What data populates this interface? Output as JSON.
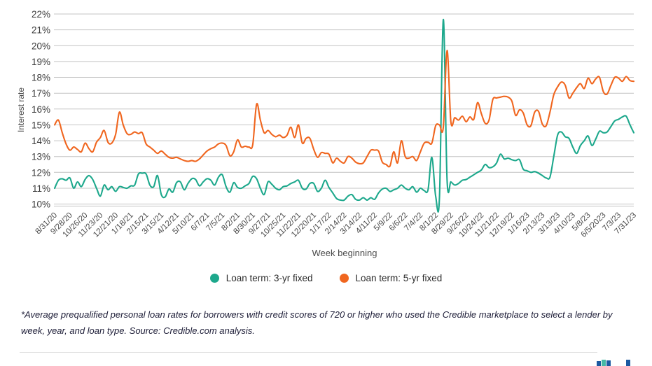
{
  "chart_data": {
    "type": "line",
    "title": "",
    "xlabel": "Week beginning",
    "ylabel": "Interest rate",
    "ylim": [
      9.85,
      22.3
    ],
    "grid": true,
    "legend_position": "bottom",
    "ytick_labels": [
      "10%",
      "11%",
      "12%",
      "13%",
      "14%",
      "15%",
      "16%",
      "17%",
      "18%",
      "19%",
      "20%",
      "21%",
      "22%"
    ],
    "yticks": [
      10,
      11,
      12,
      13,
      14,
      15,
      16,
      17,
      18,
      19,
      20,
      21,
      22
    ],
    "x_tick_every": 4,
    "x_tick_labels": [
      "8/31/20",
      "9/28/20",
      "10/26/20",
      "11/23/20",
      "12/21/20",
      "1/18/21",
      "2/15/21",
      "3/15/21",
      "4/12/21",
      "5/10/21",
      "6/7/21",
      "7/5/21",
      "8/2/21",
      "8/30/21",
      "9/27/21",
      "10/25/21",
      "11/22/21",
      "12/20/21",
      "1/17/22",
      "2/14/22",
      "3/14/22",
      "4/11/22",
      "5/9/22",
      "6/6/22",
      "7/4/22",
      "8/1/22",
      "8/29/22",
      "9/26/22",
      "10/24/22",
      "11/21/22",
      "12/19/22",
      "1/16/23",
      "2/13/23",
      "3/13/23",
      "4/10/23",
      "5/8/23",
      "6/5/2023",
      "7/3/23",
      "7/31/23"
    ],
    "series": [
      {
        "name": "Loan term: 3-yr fixed",
        "color": "#1da88c",
        "values": [
          11.0,
          11.5,
          11.6,
          11.5,
          11.65,
          11.0,
          11.4,
          11.1,
          11.55,
          11.8,
          11.55,
          11.0,
          10.5,
          11.2,
          10.9,
          11.1,
          10.8,
          11.1,
          11.05,
          11.0,
          11.15,
          11.2,
          11.9,
          11.95,
          11.9,
          11.2,
          11.1,
          11.8,
          10.6,
          10.45,
          10.95,
          10.75,
          11.35,
          11.4,
          10.9,
          11.3,
          11.6,
          11.55,
          11.15,
          11.4,
          11.6,
          11.5,
          11.2,
          11.7,
          11.85,
          11.1,
          10.75,
          11.35,
          11.05,
          11.0,
          11.15,
          11.3,
          11.75,
          11.6,
          11.0,
          10.6,
          11.4,
          11.25,
          11.0,
          10.9,
          11.1,
          11.15,
          11.3,
          11.4,
          11.5,
          11.0,
          10.95,
          11.3,
          11.3,
          10.8,
          11.0,
          11.5,
          11.05,
          10.7,
          10.35,
          10.25,
          10.25,
          10.5,
          10.6,
          10.3,
          10.25,
          10.4,
          10.25,
          10.4,
          10.3,
          10.7,
          10.95,
          11.0,
          10.8,
          10.9,
          11.0,
          11.2,
          11.0,
          10.9,
          11.1,
          10.75,
          11.0,
          10.85,
          10.9,
          12.95,
          10.5,
          10.4,
          21.65,
          11.5,
          11.4,
          11.2,
          11.3,
          11.5,
          11.55,
          11.7,
          11.85,
          12.0,
          12.15,
          12.5,
          12.3,
          12.35,
          12.6,
          13.15,
          12.85,
          12.9,
          12.8,
          12.75,
          12.8,
          12.2,
          12.1,
          12.0,
          12.05,
          11.95,
          11.8,
          11.65,
          11.7,
          13.0,
          14.35,
          14.55,
          14.25,
          14.15,
          13.6,
          13.2,
          13.7,
          14.0,
          14.3,
          13.7,
          14.1,
          14.6,
          14.5,
          14.55,
          14.9,
          15.25,
          15.35,
          15.5,
          15.55,
          15.0,
          14.5
        ]
      },
      {
        "name": "Loan term: 5-yr fixed",
        "color": "#f0661f",
        "values": [
          15.0,
          15.3,
          14.5,
          13.8,
          13.4,
          13.6,
          13.45,
          13.3,
          13.85,
          13.5,
          13.3,
          13.9,
          14.2,
          14.65,
          13.9,
          13.85,
          14.4,
          15.8,
          15.0,
          14.45,
          14.4,
          14.55,
          14.45,
          14.5,
          13.8,
          13.6,
          13.4,
          13.2,
          13.35,
          13.15,
          12.95,
          12.9,
          12.95,
          12.85,
          12.75,
          12.7,
          12.75,
          12.7,
          12.85,
          13.1,
          13.35,
          13.5,
          13.6,
          13.8,
          13.85,
          13.7,
          13.05,
          13.3,
          14.05,
          13.6,
          13.65,
          13.6,
          13.75,
          16.3,
          15.3,
          14.5,
          14.65,
          14.4,
          14.25,
          14.35,
          14.2,
          14.35,
          14.85,
          14.2,
          15.0,
          13.85,
          14.15,
          14.15,
          13.45,
          12.95,
          13.25,
          13.2,
          13.15,
          12.6,
          12.9,
          12.7,
          12.6,
          13.0,
          12.9,
          12.65,
          12.55,
          12.6,
          13.0,
          13.4,
          13.4,
          13.35,
          12.65,
          12.5,
          12.4,
          13.3,
          12.6,
          14.0,
          13.0,
          12.9,
          13.0,
          12.75,
          13.3,
          13.85,
          13.9,
          13.85,
          14.95,
          15.0,
          14.85,
          19.7,
          15.2,
          15.45,
          15.3,
          15.55,
          15.2,
          15.5,
          15.35,
          16.4,
          15.7,
          15.1,
          15.3,
          16.6,
          16.7,
          16.75,
          16.8,
          16.75,
          16.5,
          15.6,
          15.95,
          15.75,
          15.0,
          14.95,
          15.8,
          15.85,
          15.05,
          14.95,
          15.8,
          16.9,
          17.4,
          17.7,
          17.5,
          16.7,
          17.0,
          17.35,
          17.6,
          17.3,
          17.95,
          17.6,
          17.9,
          18.0,
          17.1,
          16.95,
          17.5,
          18.0,
          17.95,
          17.75,
          18.05,
          17.8,
          17.75
        ]
      }
    ]
  },
  "footnote": "*Average prequalified personal loan rates for borrowers with credit scores of 720 or higher who used the Credible marketplace to select a lender by week, year, and loan type. Source: Credible.com analysis.",
  "colors": {
    "grid": "#c4c4c4",
    "tick_text": "#4b4b4b",
    "ytick_text": "#3a3a3a",
    "logo_blue": "#1c5aa2",
    "logo_teal": "#46b8a5"
  },
  "logo_bars": [
    "#1c5aa2",
    "#46b8a5",
    "#1c5aa2",
    "#1c5aa2"
  ]
}
